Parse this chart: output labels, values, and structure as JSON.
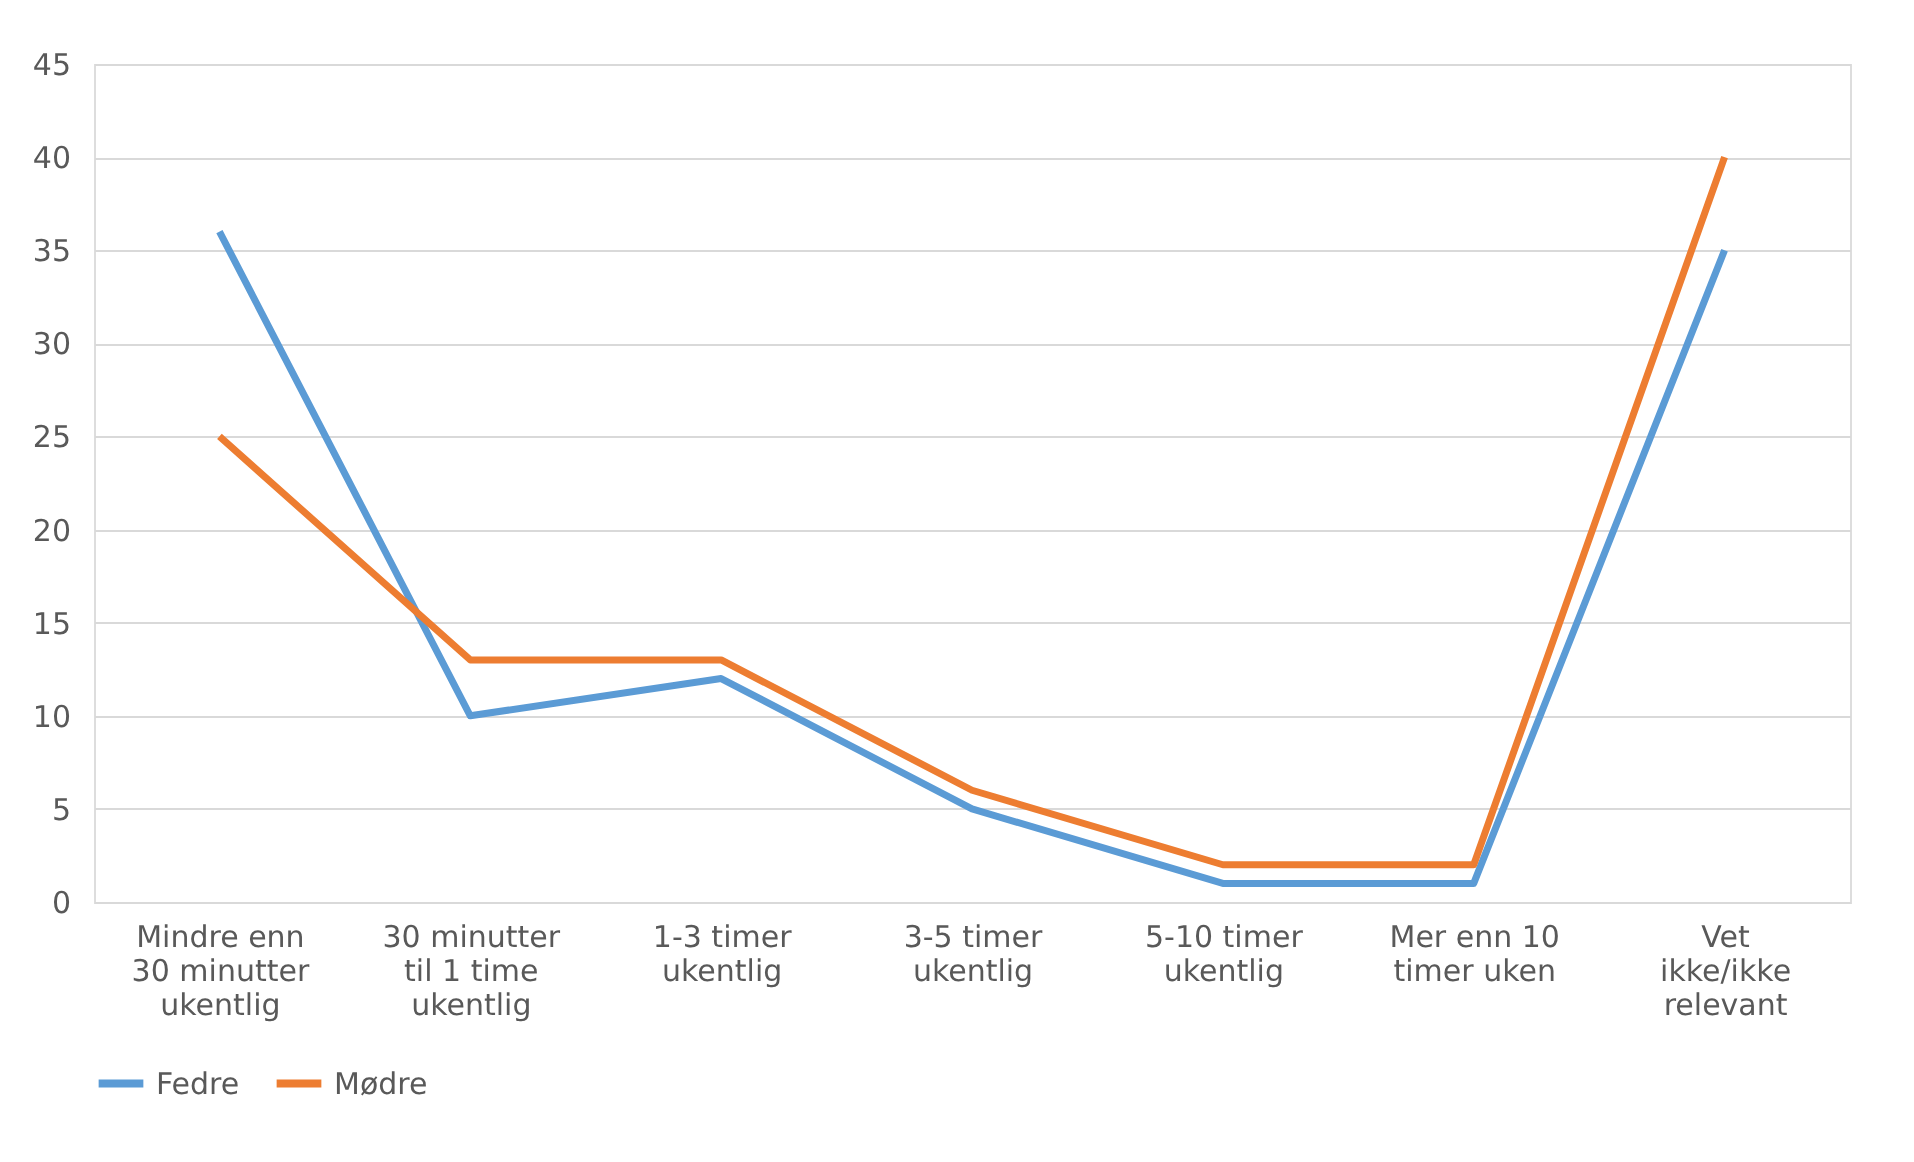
{
  "chart_data": {
    "type": "line",
    "categories": [
      "Mindre enn 30 minutter ukentlig",
      "30 minutter til 1 time ukentlig",
      "1-3 timer ukentlig",
      "3-5 timer ukentlig",
      "5-10 timer ukentlig",
      "Mer enn 10 timer uken",
      "Vet ikke/ikke relevant"
    ],
    "series": [
      {
        "name": "Fedre",
        "color": "#5b9bd5",
        "values": [
          36,
          10,
          12,
          5,
          1,
          1,
          35
        ]
      },
      {
        "name": "Mødre",
        "color": "#ed7d31",
        "values": [
          25,
          13,
          13,
          6,
          2,
          2,
          40
        ]
      }
    ],
    "ylim": [
      0,
      45
    ],
    "yticks": [
      0,
      5,
      10,
      15,
      20,
      25,
      30,
      35,
      40,
      45
    ],
    "grid": "y",
    "legend": "bottom",
    "marker": "none",
    "line_style": "solid"
  }
}
